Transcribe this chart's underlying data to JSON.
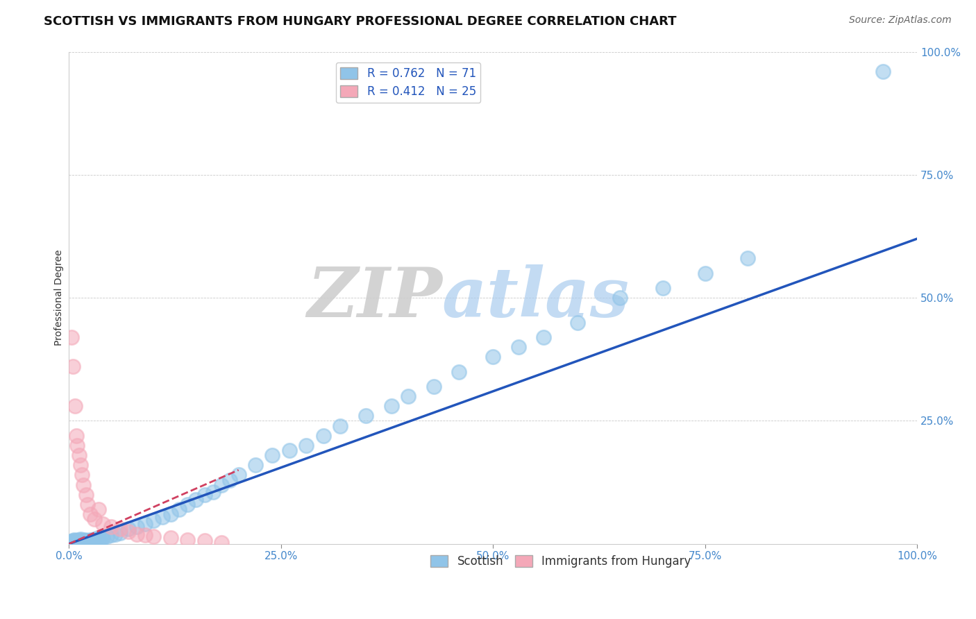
{
  "title": "SCOTTISH VS IMMIGRANTS FROM HUNGARY PROFESSIONAL DEGREE CORRELATION CHART",
  "source": "Source: ZipAtlas.com",
  "ylabel": "Professional Degree",
  "xlim": [
    0,
    100
  ],
  "ylim": [
    0,
    100
  ],
  "xticks": [
    0,
    25,
    50,
    75,
    100
  ],
  "yticks": [
    0,
    25,
    50,
    75,
    100
  ],
  "xticklabels": [
    "0.0%",
    "25.0%",
    "50.0%",
    "75.0%",
    "100.0%"
  ],
  "yticklabels": [
    "",
    "25.0%",
    "50.0%",
    "75.0%",
    "100.0%"
  ],
  "scottish_color": "#90C4E8",
  "hungary_color": "#F4A8B8",
  "trendline_scottish_color": "#2255BB",
  "trendline_hungary_color": "#D04060",
  "background_color": "#ffffff",
  "scottish_x": [
    0.2,
    0.3,
    0.4,
    0.5,
    0.6,
    0.7,
    0.8,
    0.9,
    1.0,
    1.1,
    1.2,
    1.3,
    1.4,
    1.5,
    1.6,
    1.7,
    1.8,
    1.9,
    2.0,
    2.1,
    2.2,
    2.3,
    2.4,
    2.5,
    2.6,
    2.7,
    2.8,
    3.0,
    3.2,
    3.4,
    3.6,
    3.8,
    4.0,
    4.5,
    5.0,
    5.5,
    6.0,
    7.0,
    8.0,
    9.0,
    10.0,
    11.0,
    12.0,
    13.0,
    14.0,
    15.0,
    16.0,
    17.0,
    18.0,
    19.0,
    20.0,
    22.0,
    24.0,
    26.0,
    28.0,
    30.0,
    32.0,
    35.0,
    38.0,
    40.0,
    43.0,
    46.0,
    50.0,
    53.0,
    56.0,
    60.0,
    65.0,
    70.0,
    75.0,
    80.0,
    96.0
  ],
  "scottish_y": [
    0.3,
    0.5,
    0.4,
    0.6,
    0.8,
    0.5,
    0.7,
    0.4,
    0.6,
    0.5,
    0.8,
    0.3,
    0.9,
    0.4,
    0.6,
    0.7,
    0.5,
    0.8,
    0.6,
    0.4,
    0.7,
    0.5,
    0.6,
    0.8,
    0.4,
    0.5,
    0.6,
    1.0,
    0.8,
    1.2,
    0.9,
    1.1,
    1.3,
    1.5,
    1.8,
    2.0,
    2.2,
    3.0,
    3.5,
    4.0,
    4.8,
    5.5,
    6.0,
    7.0,
    8.0,
    9.0,
    10.0,
    10.5,
    12.0,
    13.0,
    14.0,
    16.0,
    18.0,
    19.0,
    20.0,
    22.0,
    24.0,
    26.0,
    28.0,
    30.0,
    32.0,
    35.0,
    38.0,
    40.0,
    42.0,
    45.0,
    50.0,
    52.0,
    55.0,
    58.0,
    96.0
  ],
  "hungary_x": [
    0.3,
    0.5,
    0.7,
    0.9,
    1.0,
    1.2,
    1.4,
    1.5,
    1.7,
    2.0,
    2.2,
    2.5,
    3.0,
    3.5,
    4.0,
    5.0,
    6.0,
    7.0,
    8.0,
    9.0,
    10.0,
    12.0,
    14.0,
    16.0,
    18.0
  ],
  "hungary_y": [
    42.0,
    36.0,
    28.0,
    22.0,
    20.0,
    18.0,
    16.0,
    14.0,
    12.0,
    10.0,
    8.0,
    6.0,
    5.0,
    7.0,
    4.0,
    3.5,
    3.0,
    2.5,
    2.0,
    1.8,
    1.5,
    1.2,
    0.8,
    0.6,
    0.3
  ],
  "hungary_trendline_x": [
    0,
    20
  ],
  "hungary_trendline_y": [
    0,
    15
  ],
  "scottish_trendline_x": [
    0,
    100
  ],
  "scottish_trendline_y": [
    0,
    62
  ],
  "title_fontsize": 13,
  "axis_label_fontsize": 10,
  "tick_fontsize": 11,
  "legend_fontsize": 12,
  "source_fontsize": 10
}
